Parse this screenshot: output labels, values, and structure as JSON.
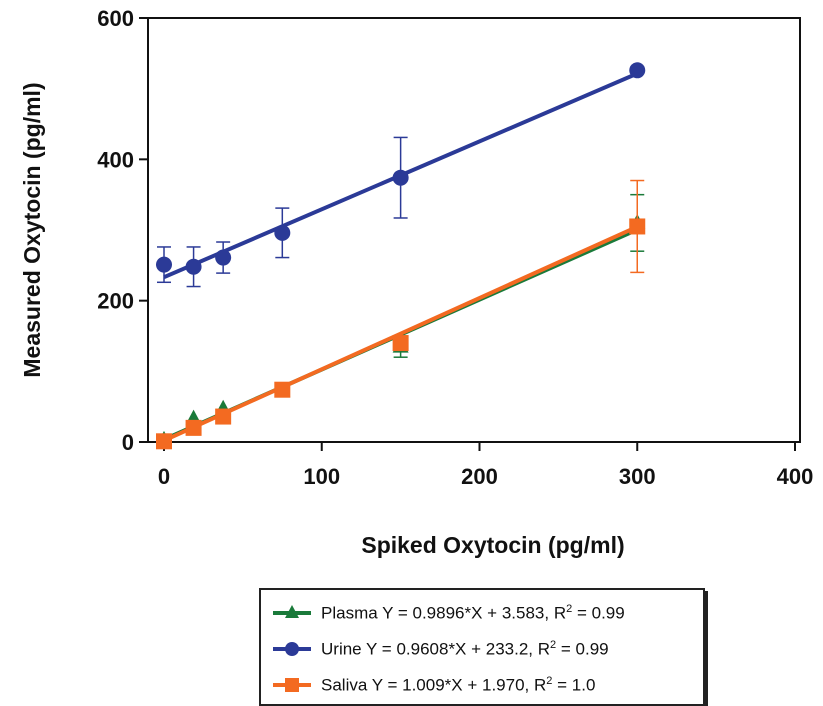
{
  "chart_data": {
    "type": "scatter",
    "title": "",
    "xlabel": "Spiked Oxytocin (pg/ml)",
    "ylabel": "Measured Oxytocin (pg/ml)",
    "xlim": [
      0,
      400
    ],
    "ylim": [
      0,
      600
    ],
    "xticks": [
      0,
      100,
      200,
      300,
      400
    ],
    "yticks": [
      0,
      200,
      400,
      600
    ],
    "grid": false,
    "legend_position": "bottom",
    "series": [
      {
        "key": "plasma",
        "name": "Plasma",
        "color": "#1a7a3a",
        "marker": "triangle",
        "fit": {
          "slope": 0.9896,
          "intercept": 3.583
        },
        "legend_label": "Plasma Y = 0.9896*X + 3.583, R",
        "legend_r2": " = 0.99",
        "points": [
          {
            "x": 0,
            "y": 3
          },
          {
            "x": 18.75,
            "y": 33
          },
          {
            "x": 37.5,
            "y": 47
          },
          {
            "x": 75,
            "y": 72,
            "err": 4
          },
          {
            "x": 150,
            "y": 135,
            "err": 15
          },
          {
            "x": 300,
            "y": 310,
            "err": 40
          }
        ]
      },
      {
        "key": "urine",
        "name": "Urine",
        "color": "#2b3a97",
        "marker": "circle",
        "fit": {
          "slope": 0.9608,
          "intercept": 233.2
        },
        "legend_label": "Urine Y = 0.9608*X + 233.2, R",
        "legend_r2": " = 0.99",
        "points": [
          {
            "x": 0,
            "y": 251,
            "err": 25
          },
          {
            "x": 18.75,
            "y": 248,
            "err": 28
          },
          {
            "x": 37.5,
            "y": 261,
            "err": 22
          },
          {
            "x": 75,
            "y": 296,
            "err": 35
          },
          {
            "x": 150,
            "y": 374,
            "err": 57
          },
          {
            "x": 300,
            "y": 526
          }
        ]
      },
      {
        "key": "saliva",
        "name": "Saliva",
        "color": "#f36a21",
        "marker": "square",
        "fit": {
          "slope": 1.009,
          "intercept": 1.97
        },
        "legend_label": "Saliva Y = 1.009*X + 1.970, R",
        "legend_r2": " = 1.0",
        "points": [
          {
            "x": 0,
            "y": 1
          },
          {
            "x": 18.75,
            "y": 20
          },
          {
            "x": 37.5,
            "y": 36
          },
          {
            "x": 75,
            "y": 74
          },
          {
            "x": 150,
            "y": 140,
            "err": 6
          },
          {
            "x": 300,
            "y": 305,
            "err": 65
          }
        ]
      }
    ]
  }
}
